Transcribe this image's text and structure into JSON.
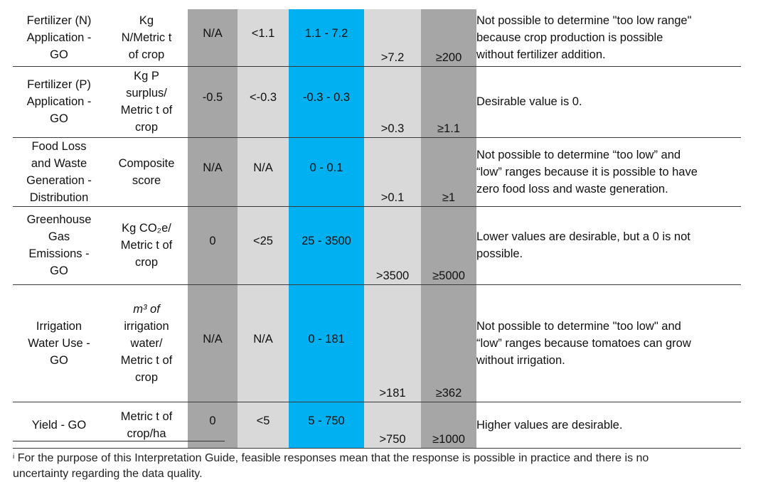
{
  "rows": [
    {
      "indicator": [
        "Fertilizer (N)",
        "Application -",
        "GO"
      ],
      "unit": [
        "Kg",
        "N/Metric t",
        "of crop"
      ],
      "too_low": "N/A",
      "low": "<1.1",
      "desirable": "1.1 - 7.2",
      "high": ">7.2",
      "too_high": "≥200",
      "note": [
        "Not possible to determine \"too low range\"",
        "because crop production is possible",
        "without fertilizer addition."
      ]
    },
    {
      "indicator": [
        "Fertilizer (P)",
        "Application -",
        "GO"
      ],
      "unit": [
        "Kg P",
        "surplus/",
        "Metric t of",
        "crop"
      ],
      "too_low": "-0.5",
      "low": "<-0.3",
      "desirable": "-0.3 - 0.3",
      "high": ">0.3",
      "too_high": "≥1.1",
      "note": [
        "Desirable value is 0."
      ]
    },
    {
      "indicator": [
        "Food Loss",
        "and Waste",
        "Generation -",
        "Distribution"
      ],
      "unit": [
        "Composite",
        "score"
      ],
      "too_low": "N/A",
      "low": "N/A",
      "desirable": "0 - 0.1",
      "high": ">0.1",
      "too_high": "≥1",
      "note": [
        "Not possible to determine “too low” and",
        "“low” ranges because it is possible to have",
        "zero food loss and waste generation."
      ]
    },
    {
      "indicator": [
        "Greenhouse",
        "Gas",
        "Emissions -",
        "GO"
      ],
      "unit": [
        "Kg CO₂e/",
        "Metric t of",
        "crop"
      ],
      "too_low": "0",
      "low": "<25",
      "desirable": "25 - 3500",
      "high": ">3500",
      "too_high": "≥5000",
      "note": [
        "Lower values are desirable, but a 0 is not",
        "possible."
      ]
    },
    {
      "indicator": [
        "Irrigation",
        "Water Use -",
        "GO"
      ],
      "unit": [
        "m³ of",
        "irrigation",
        "water/",
        "Metric t of",
        "crop"
      ],
      "too_low": "N/A",
      "low": "N/A",
      "desirable": "0 - 181",
      "high": ">181",
      "too_high": "≥362",
      "note": [
        "Not possible to determine \"too low\" and",
        "“low” ranges because tomatoes can grow",
        "without irrigation."
      ]
    },
    {
      "indicator": [
        "Yield - GO"
      ],
      "unit": [
        "Metric t of",
        "crop/ha"
      ],
      "too_low": "0",
      "low": "<5",
      "desirable": "5 - 750",
      "high": ">750",
      "too_high": "≥1000",
      "note": [
        "Higher values are desirable."
      ]
    }
  ],
  "footnote": {
    "marker": "i",
    "lines": [
      "For the purpose of this Interpretation Guide, feasible responses mean that the response is possible in practice and there is no",
      "uncertainty regarding the data quality."
    ]
  },
  "colors": {
    "too_low_fill": "#a6a6a6",
    "low_fill": "#d9d9d9",
    "desirable_fill": "#00b0f0",
    "high_fill": "#d9d9d9",
    "too_high_fill": "#a6a6a6"
  }
}
